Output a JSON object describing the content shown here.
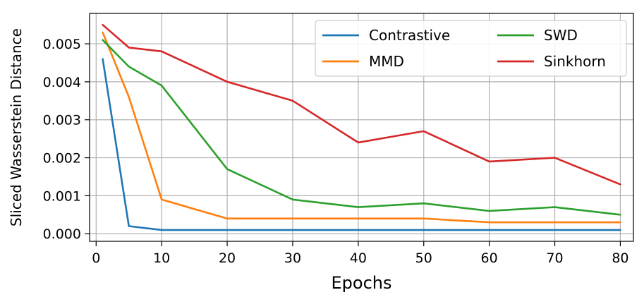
{
  "chart_data": {
    "type": "line",
    "title": "",
    "xlabel": "Epochs",
    "ylabel": "Sliced Wasserstein Distance",
    "x": [
      1,
      5,
      10,
      20,
      30,
      40,
      50,
      60,
      70,
      80
    ],
    "xlim": [
      -1,
      82
    ],
    "ylim": [
      -0.0002,
      0.0058
    ],
    "xticks": [
      0,
      10,
      20,
      30,
      40,
      50,
      60,
      70,
      80
    ],
    "xtick_labels": [
      "0",
      "10",
      "20",
      "30",
      "40",
      "50",
      "60",
      "70",
      "80"
    ],
    "yticks": [
      0,
      0.001,
      0.002,
      0.003,
      0.004,
      0.005
    ],
    "ytick_labels": [
      "0.000",
      "0.001",
      "0.002",
      "0.003",
      "0.004",
      "0.005"
    ],
    "grid": true,
    "legend_position": "top-right",
    "series": [
      {
        "name": "Contrastive",
        "color": "#1f77b4",
        "values": [
          0.0046,
          0.0002,
          0.0001,
          0.0001,
          0.0001,
          0.0001,
          0.0001,
          0.0001,
          0.0001,
          0.0001
        ]
      },
      {
        "name": "MMD",
        "color": "#ff7f0e",
        "values": [
          0.0053,
          0.0036,
          0.0009,
          0.0004,
          0.0004,
          0.0004,
          0.0004,
          0.0003,
          0.0003,
          0.0003
        ]
      },
      {
        "name": "SWD",
        "color": "#2ca02c",
        "values": [
          0.0051,
          0.0044,
          0.0039,
          0.0017,
          0.0009,
          0.0007,
          0.0008,
          0.0006,
          0.0007,
          0.0005
        ]
      },
      {
        "name": "Sinkhorn",
        "color": "#d62728",
        "values": [
          0.0055,
          0.0049,
          0.0048,
          0.004,
          0.0035,
          0.0024,
          0.0027,
          0.0019,
          0.002,
          0.0013
        ]
      }
    ]
  }
}
